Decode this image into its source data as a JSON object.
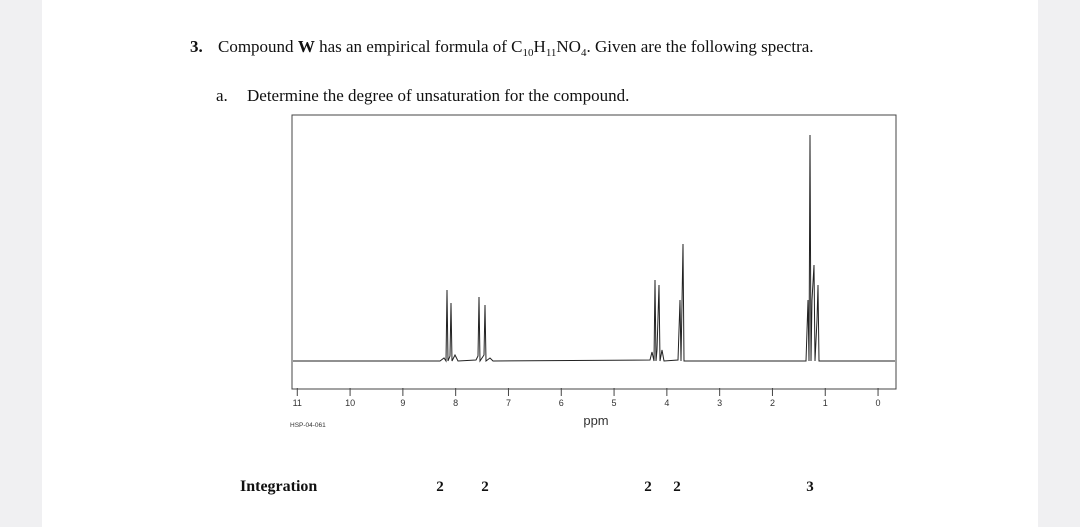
{
  "question": {
    "number": "3.",
    "text_parts": [
      "Compound ",
      "W",
      " has an empirical formula of C",
      "10",
      "H",
      "11",
      "NO",
      "4",
      ". Given are the following spectra."
    ]
  },
  "part_a": {
    "letter": "a.",
    "text": "Determine the degree of unsaturation for the compound."
  },
  "spectrum": {
    "xlim": [
      11.1,
      -0.34
    ],
    "xticks": [
      11,
      10,
      9,
      8,
      7,
      6,
      5,
      4,
      3,
      2,
      1,
      0
    ],
    "xlabel": "ppm",
    "sample_id": "HSP-04-061"
  },
  "integration": {
    "label": "Integration",
    "values": [
      "2",
      "2",
      "2",
      "2",
      "3"
    ]
  }
}
